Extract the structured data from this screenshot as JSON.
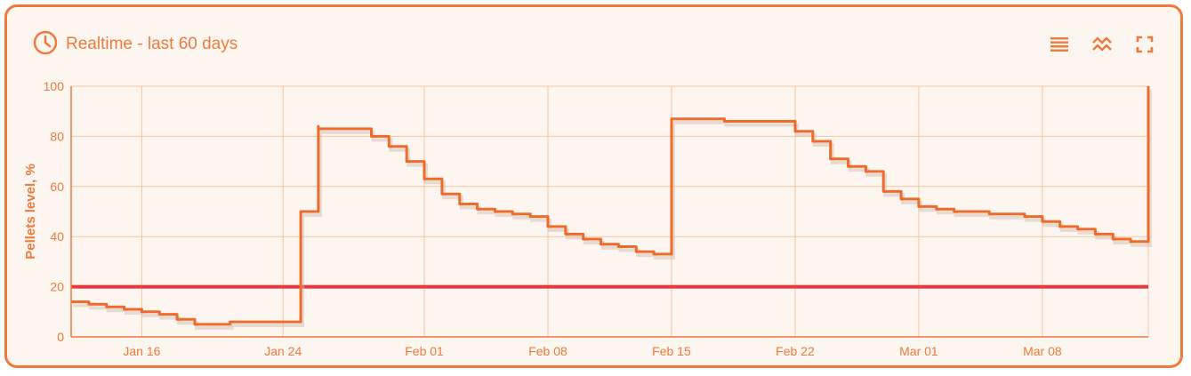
{
  "header": {
    "title": "Realtime - last 60 days",
    "icons": [
      "clock-icon",
      "list-icon",
      "compare-icon",
      "fullscreen-icon"
    ]
  },
  "colors": {
    "accent": "#ef7a3b",
    "line": "#ef6b2b",
    "threshold": "#e8383f",
    "grid": "#f7c59f",
    "background": "#fdf6f0"
  },
  "chart_data": {
    "type": "line",
    "title": "",
    "xlabel": "",
    "ylabel": "Pellets level, %",
    "ylim": [
      0,
      100
    ],
    "xlim": [
      "2025-01-12",
      "2025-03-14"
    ],
    "y_ticks": [
      "0",
      "20",
      "40",
      "60",
      "80",
      "100"
    ],
    "x_ticks": [
      {
        "date": "2025-01-16",
        "label": "Jan 16"
      },
      {
        "date": "2025-01-24",
        "label": "Jan 24"
      },
      {
        "date": "2025-02-01",
        "label": "Feb 01"
      },
      {
        "date": "2025-02-08",
        "label": "Feb 08"
      },
      {
        "date": "2025-02-15",
        "label": "Feb 15"
      },
      {
        "date": "2025-02-22",
        "label": "Feb 22"
      },
      {
        "date": "2025-03-01",
        "label": "Mar 01"
      },
      {
        "date": "2025-03-08",
        "label": "Mar 08"
      }
    ],
    "grid": true,
    "threshold": 20,
    "series": [
      {
        "x": [
          "2025-01-12",
          "2025-01-13",
          "2025-01-14",
          "2025-01-15",
          "2025-01-16",
          "2025-01-17",
          "2025-01-18",
          "2025-01-19",
          "2025-01-19",
          "2025-01-20",
          "2025-01-21",
          "2025-01-21",
          "2025-01-22",
          "2025-01-23",
          "2025-01-24",
          "2025-01-24",
          "2025-01-25",
          "2025-01-26",
          "2025-01-26",
          "2025-01-27",
          "2025-01-28",
          "2025-01-29",
          "2025-01-29",
          "2025-01-30",
          "2025-01-31",
          "2025-02-01",
          "2025-02-02",
          "2025-02-03",
          "2025-02-04",
          "2025-02-05",
          "2025-02-06",
          "2025-02-07",
          "2025-02-08",
          "2025-02-09",
          "2025-02-10",
          "2025-02-11",
          "2025-02-12",
          "2025-02-13",
          "2025-02-13",
          "2025-02-14",
          "2025-02-15",
          "2025-02-16",
          "2025-02-17",
          "2025-02-18",
          "2025-02-19",
          "2025-02-20",
          "2025-02-21",
          "2025-02-22",
          "2025-02-23",
          "2025-02-24",
          "2025-02-25",
          "2025-02-26",
          "2025-02-27",
          "2025-02-28",
          "2025-03-01",
          "2025-03-02",
          "2025-03-03",
          "2025-03-04",
          "2025-03-05",
          "2025-03-06",
          "2025-03-07",
          "2025-03-08",
          "2025-03-09",
          "2025-03-10",
          "2025-03-11",
          "2025-03-12",
          "2025-03-13",
          "2025-03-14"
        ],
        "y": [
          14,
          13,
          12,
          11,
          10,
          9,
          7,
          5,
          5,
          5,
          5,
          6,
          6,
          6,
          6,
          6,
          50,
          84,
          83,
          83,
          83,
          82,
          80,
          76,
          70,
          63,
          57,
          53,
          51,
          50,
          49,
          48,
          44,
          41,
          39,
          37,
          36,
          35,
          34,
          33,
          87,
          87,
          87,
          86,
          86,
          86,
          86,
          82,
          78,
          71,
          68,
          66,
          58,
          55,
          52,
          51,
          50,
          50,
          49,
          49,
          48,
          46,
          44,
          43,
          41,
          39,
          38,
          100
        ]
      }
    ]
  }
}
